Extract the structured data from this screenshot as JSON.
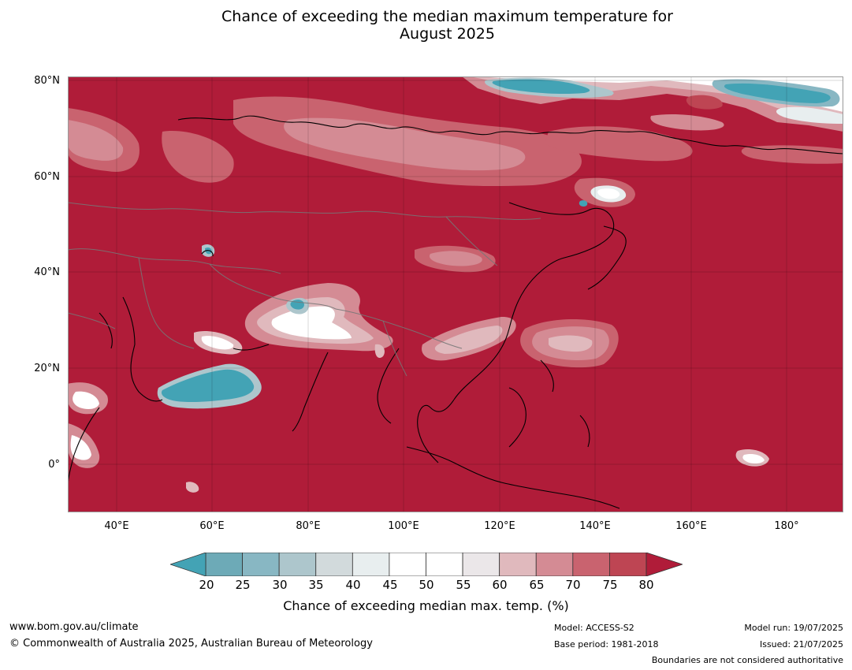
{
  "title": {
    "line1": "Chance of exceeding the median maximum temperature for",
    "line2": "August 2025"
  },
  "map": {
    "lat_labels": [
      "80°N",
      "60°N",
      "40°N",
      "20°N",
      "0°"
    ],
    "lon_labels": [
      "40°E",
      "60°E",
      "80°E",
      "100°E",
      "120°E",
      "140°E",
      "160°E",
      "180°"
    ],
    "colors": {
      "c80": "#b01c39",
      "c75": "#be4553",
      "c70": "#c9636f",
      "c65": "#d48b94",
      "c60": "#e0b9bd",
      "c55": "#ebe7e9",
      "c50": "#ffffff",
      "c40": "#e8eeef",
      "c35": "#d2dadc",
      "c30": "#adc6cc",
      "c25": "#88b7c3",
      "c20": "#6daab7",
      "c_low": "#43a3b5"
    }
  },
  "colorbar": {
    "ticks": [
      "20",
      "25",
      "30",
      "35",
      "40",
      "45",
      "50",
      "55",
      "60",
      "65",
      "70",
      "75",
      "80"
    ],
    "colors": [
      "#6daab7",
      "#88b7c3",
      "#adc6cc",
      "#d2dadc",
      "#e8eeef",
      "#ffffff",
      "#ffffff",
      "#ebe7e9",
      "#e0b9bd",
      "#d48b94",
      "#c9636f",
      "#be4553"
    ],
    "low_extend": "#43a3b5",
    "high_extend": "#b01c39",
    "label": "Chance of exceeding median max. temp. (%)"
  },
  "footer": {
    "website": "www.bom.gov.au/climate",
    "copyright": "© Commonwealth of Australia 2025, Australian Bureau of Meteorology",
    "model": "Model: ACCESS-S2",
    "base_period": "Base period: 1981-2018",
    "model_run": "Model run: 19/07/2025",
    "issued": "Issued: 21/07/2025",
    "disclaimer": "Boundaries are not considered authoritative"
  }
}
